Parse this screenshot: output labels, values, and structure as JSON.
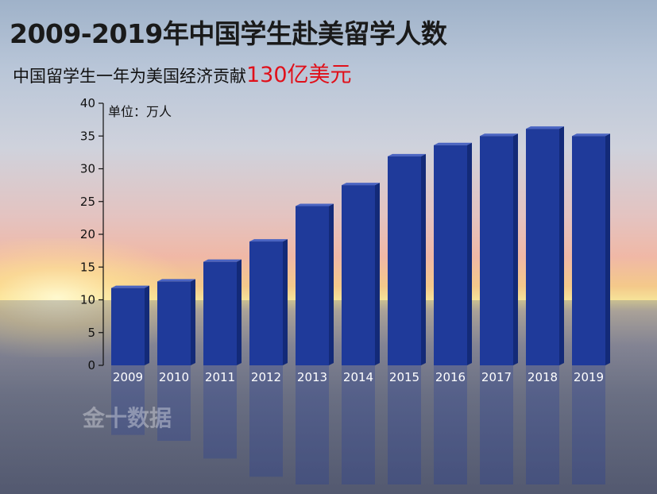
{
  "title": "2009-2019年中国学生赴美留学人数",
  "subtitle": {
    "prefix": "中国留学生一年为美国经济贡献",
    "highlight": "130亿美元"
  },
  "watermark": "金十数据",
  "colors": {
    "bar": "#1f3a9a",
    "bar_side": "#132a78",
    "bar_top": "#4a64c2",
    "highlight": "#e0101a"
  },
  "chart_data": {
    "type": "bar",
    "unit_label": "单位：万人",
    "categories": [
      "2009",
      "2010",
      "2011",
      "2012",
      "2013",
      "2014",
      "2015",
      "2016",
      "2017",
      "2018",
      "2019"
    ],
    "values": [
      11.8,
      12.8,
      15.8,
      18.9,
      24.3,
      27.5,
      31.9,
      33.6,
      35.0,
      36.1,
      35.0
    ],
    "yticks": [
      0,
      5,
      10,
      15,
      20,
      25,
      30,
      35,
      40
    ],
    "ylim": [
      0,
      40
    ],
    "grid": false
  }
}
